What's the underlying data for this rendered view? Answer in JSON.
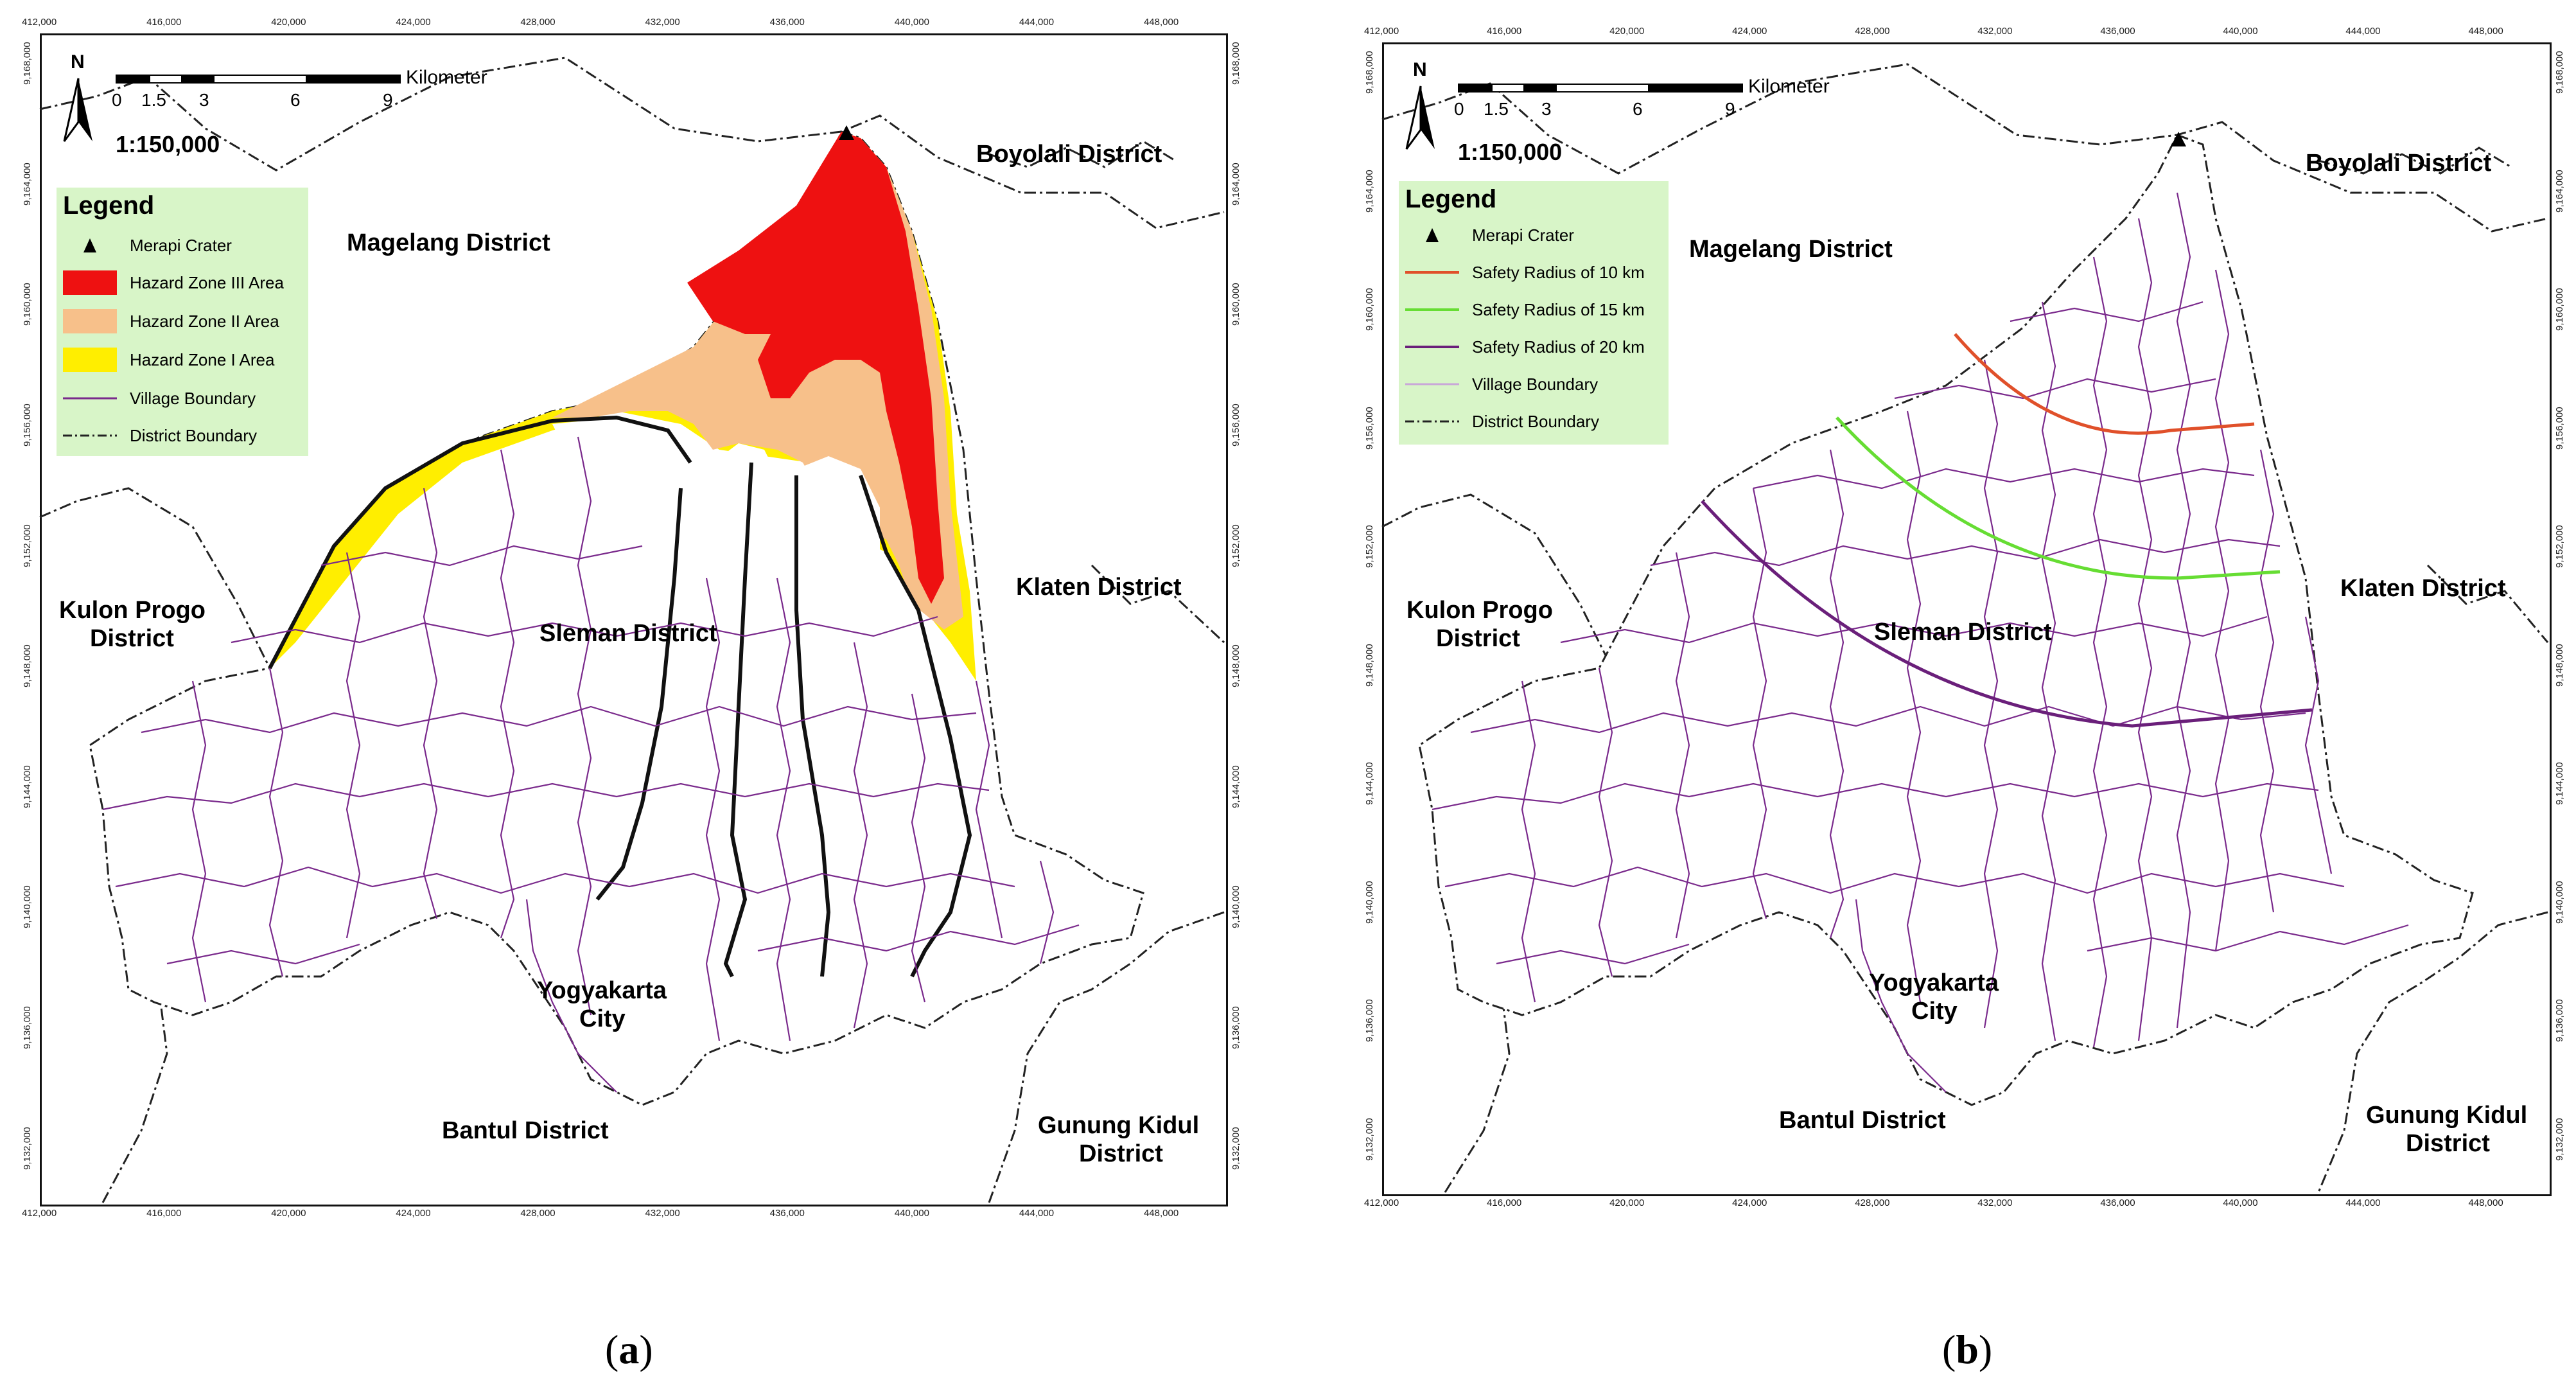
{
  "colors": {
    "hazard3": "#ee1111",
    "hazard2": "#f7c08a",
    "hazard1": "#ffee00",
    "village": "#7a2a8c",
    "district": "#222222",
    "legend_bg": "#d8f5c8",
    "radius10": "#e0502a",
    "radius15": "#66dd33",
    "radius20": "#6a1f7a"
  },
  "panels": [
    {
      "caption_open": "(",
      "caption_letter": "a",
      "caption_close": ")",
      "x_ticks": [
        "412,000",
        "416,000",
        "420,000",
        "424,000",
        "428,000",
        "432,000",
        "436,000",
        "440,000",
        "444,000",
        "448,000"
      ],
      "y_ticks": [
        "9,168,000",
        "9,164,000",
        "9,160,000",
        "9,156,000",
        "9,152,000",
        "9,148,000",
        "9,144,000",
        "9,140,000",
        "9,136,000",
        "9,132,000"
      ],
      "north": "N",
      "scale_ticks": [
        "0",
        "1.5",
        "3",
        "6",
        "9"
      ],
      "scale_unit": "Kilometer",
      "ratio": "1:150,000",
      "legend_title": "Legend",
      "legend_items": [
        {
          "label": "Merapi Crater",
          "icon": "triangle-icon"
        },
        {
          "label": "Hazard Zone III Area",
          "icon": "fill-red"
        },
        {
          "label": "Hazard Zone II Area",
          "icon": "fill-peach"
        },
        {
          "label": "Hazard Zone I Area",
          "icon": "fill-yellow"
        },
        {
          "label": "Village Boundary",
          "icon": "line-purple"
        },
        {
          "label": "District Boundary",
          "icon": "line-dashdot"
        }
      ],
      "districts": {
        "magelang": "Magelang District",
        "boyolali": "Boyolali District",
        "kulon_progo_1": "Kulon Progo",
        "kulon_progo_2": "District",
        "sleman": "Sleman District",
        "klaten": "Klaten District",
        "yogyakarta_1": "Yogyakarta",
        "yogyakarta_2": "City",
        "bantul": "Bantul District",
        "gunung_kidul_1": "Gunung Kidul",
        "gunung_kidul_2": "District"
      }
    },
    {
      "caption_open": "(",
      "caption_letter": "b",
      "caption_close": ")",
      "x_ticks": [
        "412,000",
        "416,000",
        "420,000",
        "424,000",
        "428,000",
        "432,000",
        "436,000",
        "440,000",
        "444,000",
        "448,000"
      ],
      "y_ticks": [
        "9,168,000",
        "9,164,000",
        "9,160,000",
        "9,156,000",
        "9,152,000",
        "9,148,000",
        "9,144,000",
        "9,140,000",
        "9,136,000",
        "9,132,000"
      ],
      "north": "N",
      "scale_ticks": [
        "0",
        "1.5",
        "3",
        "6",
        "9"
      ],
      "scale_unit": "Kilometer",
      "ratio": "1:150,000",
      "legend_title": "Legend",
      "legend_items": [
        {
          "label": "Merapi Crater",
          "icon": "triangle-icon"
        },
        {
          "label": "Safety Radius of 10 km",
          "icon": "line-orange"
        },
        {
          "label": "Safety Radius of 15 km",
          "icon": "line-green"
        },
        {
          "label": "Safety Radius of 20 km",
          "icon": "line-purple"
        },
        {
          "label": "Village Boundary",
          "icon": "line-lightpurple"
        },
        {
          "label": "District Boundary",
          "icon": "line-dashdot"
        }
      ],
      "districts": {
        "magelang": "Magelang District",
        "boyolali": "Boyolali District",
        "kulon_progo_1": "Kulon Progo",
        "kulon_progo_2": "District",
        "sleman": "Sleman District",
        "klaten": "Klaten District",
        "yogyakarta_1": "Yogyakarta",
        "yogyakarta_2": "City",
        "bantul": "Bantul District",
        "gunung_kidul_1": "Gunung Kidul",
        "gunung_kidul_2": "District"
      }
    }
  ]
}
